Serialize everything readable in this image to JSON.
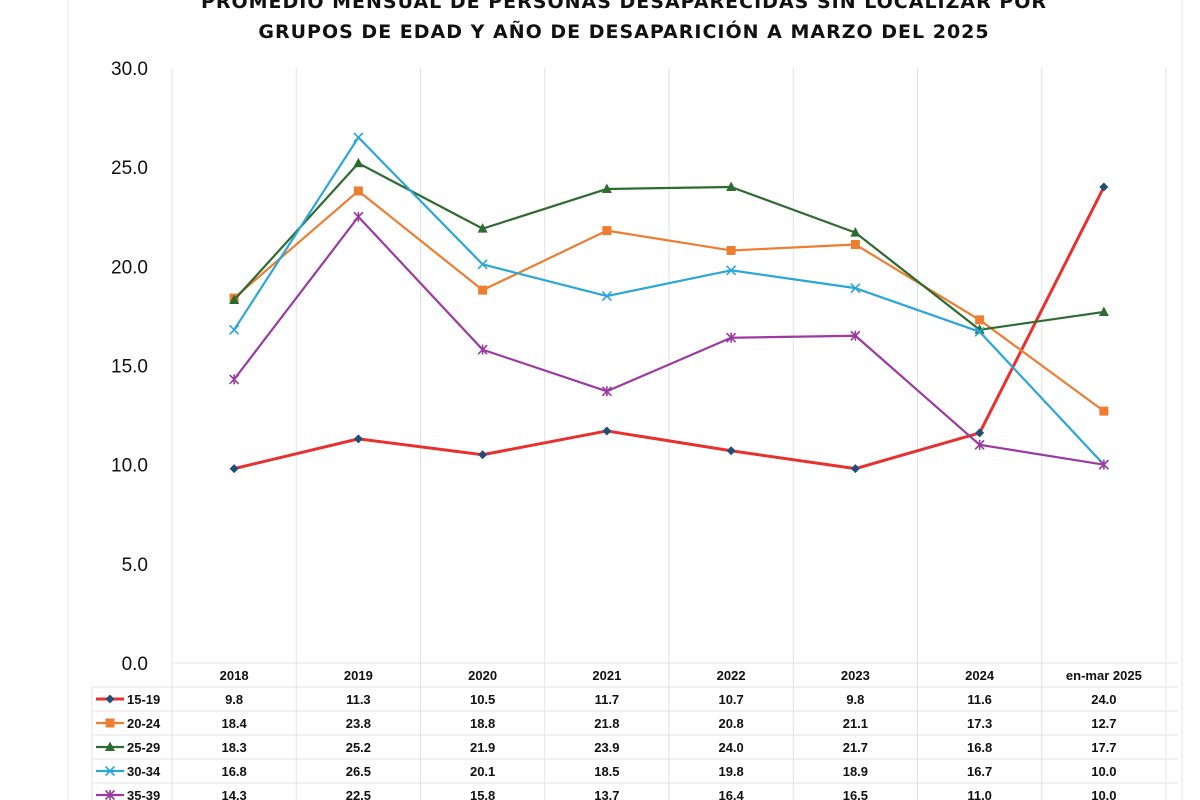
{
  "chart_data": {
    "type": "line",
    "title": "PROMEDIO MENSUAL DE PERSONAS DESAPARECIDAS SIN LOCALIZAR POR GRUPOS DE EDAD Y AÑO DE DESAPARICIÓN A MARZO DEL 2025",
    "title_lines": [
      "PROMEDIO MENSUAL DE PERSONAS DESAPARECIDAS SIN LOCALIZAR POR",
      "GRUPOS DE EDAD Y AÑO DE DESAPARICIÓN A MARZO DEL 2025"
    ],
    "xlabel": "",
    "ylabel": "",
    "ylim": [
      0,
      30
    ],
    "yticks": [
      "0.0",
      "5.0",
      "10.0",
      "15.0",
      "20.0",
      "25.0",
      "30.0"
    ],
    "grid": "vertical",
    "legend": "data-table",
    "categories": [
      "2018",
      "2019",
      "2020",
      "2021",
      "2022",
      "2023",
      "2024",
      "en-mar 2025"
    ],
    "series": [
      {
        "name": "15-19",
        "color": "#e8312f",
        "marker": "diamond",
        "markerColor": "#1f4e79",
        "values": [
          9.8,
          11.3,
          10.5,
          11.7,
          10.7,
          9.8,
          11.6,
          24.0
        ]
      },
      {
        "name": "20-24",
        "color": "#ed7d31",
        "marker": "square",
        "values": [
          18.4,
          23.8,
          18.8,
          21.8,
          20.8,
          21.1,
          17.3,
          12.7
        ]
      },
      {
        "name": "25-29",
        "color": "#2e6b30",
        "marker": "triangle",
        "values": [
          18.3,
          25.2,
          21.9,
          23.9,
          24.0,
          21.7,
          16.8,
          17.7
        ]
      },
      {
        "name": "30-34",
        "color": "#2aa6d9",
        "marker": "x",
        "values": [
          16.8,
          26.5,
          20.1,
          18.5,
          19.8,
          18.9,
          16.7,
          10.0
        ]
      },
      {
        "name": "35-39",
        "color": "#9b3aa0",
        "marker": "star",
        "values": [
          14.3,
          22.5,
          15.8,
          13.7,
          16.4,
          16.5,
          11.0,
          10.0
        ]
      }
    ]
  }
}
